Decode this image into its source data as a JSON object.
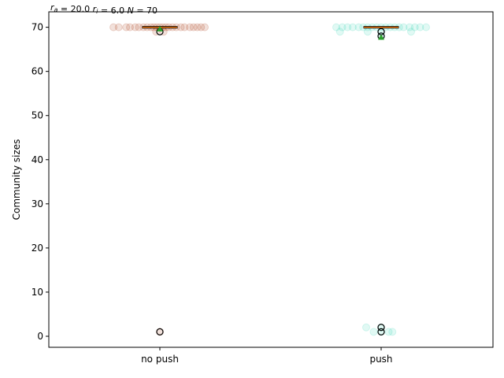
{
  "chart_data": {
    "type": "box",
    "title": "r_a = 20.0  r_i = 6.0  N = 70",
    "ylabel": "Community sizes",
    "xlabel": "",
    "categories": [
      "no push",
      "push"
    ],
    "ylim": [
      -2.5,
      73.5
    ],
    "yticks": [
      0,
      10,
      20,
      30,
      40,
      50,
      60,
      70
    ],
    "colors": {
      "no push": "#a52a00",
      "push": "#2ad4b4",
      "mean_marker": "#2ca02c",
      "median": "#ff7f0e"
    },
    "series": [
      {
        "name": "no push",
        "box": {
          "q1": 70,
          "median": 70,
          "q3": 70,
          "whisker_low": 70,
          "whisker_high": 70
        },
        "mean": 69.6,
        "outliers": [
          69,
          1
        ],
        "points": [
          {
            "x": -0.62,
            "y": 70
          },
          {
            "x": -0.55,
            "y": 70
          },
          {
            "x": -0.45,
            "y": 70
          },
          {
            "x": -0.4,
            "y": 70
          },
          {
            "x": -0.33,
            "y": 70
          },
          {
            "x": -0.28,
            "y": 70
          },
          {
            "x": -0.22,
            "y": 70
          },
          {
            "x": -0.17,
            "y": 70
          },
          {
            "x": -0.12,
            "y": 70
          },
          {
            "x": -0.08,
            "y": 70
          },
          {
            "x": -0.04,
            "y": 70
          },
          {
            "x": 0.0,
            "y": 70
          },
          {
            "x": 0.04,
            "y": 70
          },
          {
            "x": 0.08,
            "y": 70
          },
          {
            "x": 0.12,
            "y": 70
          },
          {
            "x": 0.17,
            "y": 70
          },
          {
            "x": 0.22,
            "y": 70
          },
          {
            "x": 0.28,
            "y": 70
          },
          {
            "x": 0.33,
            "y": 70
          },
          {
            "x": 0.4,
            "y": 70
          },
          {
            "x": 0.45,
            "y": 70
          },
          {
            "x": 0.5,
            "y": 70
          },
          {
            "x": 0.55,
            "y": 70
          },
          {
            "x": 0.6,
            "y": 70
          },
          {
            "x": -0.05,
            "y": 69
          },
          {
            "x": 0.05,
            "y": 69
          },
          {
            "x": 0.0,
            "y": 1
          }
        ]
      },
      {
        "name": "push",
        "box": {
          "q1": 70,
          "median": 70,
          "q3": 70,
          "whisker_low": 70,
          "whisker_high": 70
        },
        "mean": 67.7,
        "outliers": [
          69,
          68,
          2,
          1
        ],
        "points": [
          {
            "x": -0.6,
            "y": 70
          },
          {
            "x": -0.52,
            "y": 70
          },
          {
            "x": -0.45,
            "y": 70
          },
          {
            "x": -0.38,
            "y": 70
          },
          {
            "x": -0.3,
            "y": 70
          },
          {
            "x": -0.24,
            "y": 70
          },
          {
            "x": -0.18,
            "y": 70
          },
          {
            "x": -0.12,
            "y": 70
          },
          {
            "x": -0.06,
            "y": 70
          },
          {
            "x": 0.0,
            "y": 70
          },
          {
            "x": 0.06,
            "y": 70
          },
          {
            "x": 0.12,
            "y": 70
          },
          {
            "x": 0.18,
            "y": 70
          },
          {
            "x": 0.24,
            "y": 70
          },
          {
            "x": 0.3,
            "y": 70
          },
          {
            "x": 0.38,
            "y": 70
          },
          {
            "x": 0.45,
            "y": 70
          },
          {
            "x": 0.52,
            "y": 70
          },
          {
            "x": 0.6,
            "y": 70
          },
          {
            "x": -0.55,
            "y": 69
          },
          {
            "x": -0.18,
            "y": 69
          },
          {
            "x": 0.0,
            "y": 69
          },
          {
            "x": 0.4,
            "y": 69
          },
          {
            "x": 0.0,
            "y": 68
          },
          {
            "x": -0.2,
            "y": 2
          },
          {
            "x": 0.0,
            "y": 2
          },
          {
            "x": -0.1,
            "y": 1
          },
          {
            "x": 0.0,
            "y": 1
          },
          {
            "x": 0.1,
            "y": 1
          },
          {
            "x": 0.15,
            "y": 1
          }
        ]
      }
    ]
  }
}
